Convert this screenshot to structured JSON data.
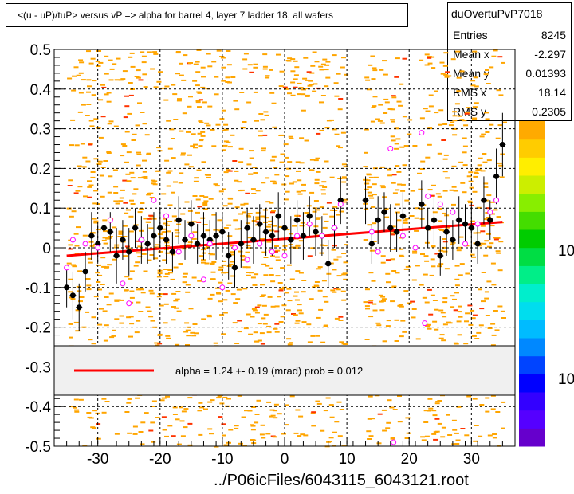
{
  "title": "<(u - uP)/tuP> versus   vP => alpha for barrel 4, layer 7 ladder 18, all wafers",
  "stats": {
    "name": "duOvertuPvP7018",
    "rows": [
      {
        "label": "Entries",
        "value": "8245"
      },
      {
        "label": "Mean x",
        "value": "-2.297"
      },
      {
        "label": "Mean y",
        "value": "0.01393"
      },
      {
        "label": "RMS x",
        "value": "18.14"
      },
      {
        "label": "RMS y",
        "value": "0.2305"
      }
    ]
  },
  "legend": {
    "text": "alpha =    1.24 +-  0.19 (mrad) prob = 0.012"
  },
  "footer": "../P06icFiles/6043115_6043121.root",
  "palette_labels": [
    "10",
    "10"
  ],
  "colors": {
    "fit": "#ff0000",
    "points": "#000000",
    "open_points": "#ff00ff",
    "scatter": "#ffa500"
  },
  "chart_data": {
    "type": "scatter",
    "title": "<(u - uP)/tuP> versus   vP => alpha for barrel 4, layer 7 ladder 18, all wafers",
    "xlim": [
      -37,
      37
    ],
    "ylim": [
      -0.5,
      0.5
    ],
    "x_ticks": [
      -30,
      -20,
      -10,
      0,
      10,
      20,
      30
    ],
    "y_ticks": [
      -0.5,
      -0.4,
      -0.3,
      -0.2,
      -0.1,
      0,
      0.1,
      0.2,
      0.3,
      0.4,
      0.5
    ],
    "x_tick_labels": [
      "-30",
      "-20",
      "-10",
      "0",
      "10",
      "20",
      "30"
    ],
    "y_tick_labels": [
      "-0.5",
      "-0.4",
      "-0.3",
      "-0.2",
      "-0.1",
      "0",
      "0.1",
      "0.2",
      "0.3",
      "0.4",
      "0.5"
    ],
    "grid": true,
    "fit_line": {
      "x": [
        -35,
        35
      ],
      "y": [
        -0.02,
        0.065
      ]
    },
    "profile_points": [
      [
        -35,
        -0.1,
        0.05
      ],
      [
        -34,
        -0.12,
        0.06
      ],
      [
        -33,
        -0.15,
        0.06
      ],
      [
        -32,
        -0.06,
        0.05
      ],
      [
        -31,
        0.03,
        0.06
      ],
      [
        -30,
        0.01,
        0.05
      ],
      [
        -29,
        0.05,
        0.06
      ],
      [
        -28,
        0.04,
        0.05
      ],
      [
        -27,
        -0.02,
        0.07
      ],
      [
        -26,
        0.02,
        0.05
      ],
      [
        -25,
        -0.01,
        0.06
      ],
      [
        -24,
        0.05,
        0.05
      ],
      [
        -23,
        0.02,
        0.06
      ],
      [
        -22,
        0.01,
        0.05
      ],
      [
        -21,
        0.03,
        0.06
      ],
      [
        -20,
        0.05,
        0.05
      ],
      [
        -19,
        0.02,
        0.06
      ],
      [
        -18,
        -0.01,
        0.05
      ],
      [
        -17,
        0.07,
        0.06
      ],
      [
        -16,
        0.02,
        0.05
      ],
      [
        -15,
        0.06,
        0.06
      ],
      [
        -14,
        0.01,
        0.05
      ],
      [
        -13,
        0.03,
        0.06
      ],
      [
        -12,
        0.02,
        0.05
      ],
      [
        -11,
        0.03,
        0.06
      ],
      [
        -10,
        0.04,
        0.05
      ],
      [
        -9,
        -0.02,
        0.06
      ],
      [
        -8,
        -0.05,
        0.05
      ],
      [
        -7,
        0.01,
        0.06
      ],
      [
        -6,
        0.05,
        0.05
      ],
      [
        -5,
        0.02,
        0.06
      ],
      [
        -4,
        0.06,
        0.05
      ],
      [
        -3,
        0.04,
        0.06
      ],
      [
        -2,
        0.03,
        0.05
      ],
      [
        -1,
        0.08,
        0.06
      ],
      [
        0,
        0.05,
        0.05
      ],
      [
        1,
        0.02,
        0.06
      ],
      [
        2,
        0.07,
        0.05
      ],
      [
        3,
        0.03,
        0.06
      ],
      [
        4,
        0.08,
        0.05
      ],
      [
        5,
        0.04,
        0.06
      ],
      [
        6,
        0.03,
        0.05
      ],
      [
        7,
        -0.04,
        0.06
      ],
      [
        8,
        0.05,
        0.05
      ],
      [
        9,
        0.12,
        0.06
      ],
      [
        13,
        0.12,
        0.06
      ],
      [
        14,
        0.01,
        0.05
      ],
      [
        15,
        0.07,
        0.06
      ],
      [
        16,
        0.09,
        0.05
      ],
      [
        17,
        0.05,
        0.06
      ],
      [
        18,
        0.04,
        0.05
      ],
      [
        19,
        0.08,
        0.06
      ],
      [
        22,
        0.11,
        0.06
      ],
      [
        23,
        0.05,
        0.05
      ],
      [
        24,
        0.07,
        0.06
      ],
      [
        25,
        -0.02,
        0.05
      ],
      [
        26,
        0.04,
        0.06
      ],
      [
        27,
        0.02,
        0.05
      ],
      [
        28,
        0.07,
        0.06
      ],
      [
        29,
        0.06,
        0.05
      ],
      [
        30,
        0.05,
        0.06
      ],
      [
        31,
        0.01,
        0.05
      ],
      [
        32,
        0.12,
        0.06
      ],
      [
        33,
        0.07,
        0.05
      ],
      [
        34,
        0.18,
        0.07
      ],
      [
        35,
        0.26,
        0.08
      ]
    ],
    "open_points": [
      [
        -35,
        -0.05
      ],
      [
        -34,
        0.02
      ],
      [
        -32,
        0.01
      ],
      [
        -30,
        0.0
      ],
      [
        -28,
        0.07
      ],
      [
        -26,
        -0.09
      ],
      [
        -25,
        -0.14
      ],
      [
        -23,
        0.02
      ],
      [
        -21,
        0.12
      ],
      [
        -19,
        0.08
      ],
      [
        -17,
        -0.01
      ],
      [
        -15,
        0.03
      ],
      [
        -13,
        -0.08
      ],
      [
        -12,
        0.01
      ],
      [
        -10,
        -0.1
      ],
      [
        -8,
        0.0
      ],
      [
        -6,
        -0.03
      ],
      [
        -4,
        0.01
      ],
      [
        -2,
        -0.01
      ],
      [
        0,
        -0.02
      ],
      [
        2,
        0.03
      ],
      [
        4,
        0.06
      ],
      [
        6,
        0.03
      ],
      [
        8,
        0.05
      ],
      [
        9,
        0.11
      ],
      [
        14,
        0.04
      ],
      [
        15,
        -0.01
      ],
      [
        17,
        0.25
      ],
      [
        19,
        0.03
      ],
      [
        21,
        0.0
      ],
      [
        22,
        0.29
      ],
      [
        22.5,
        -0.19
      ],
      [
        23,
        0.13
      ],
      [
        25,
        0.11
      ],
      [
        27,
        0.09
      ],
      [
        29,
        0.01
      ],
      [
        31,
        0.06
      ],
      [
        33,
        0.09
      ],
      [
        34,
        0.12
      ],
      [
        17.5,
        -0.49
      ]
    ],
    "series": [
      {
        "name": "alpha fit",
        "values": [
          -0.02,
          0.065
        ]
      }
    ]
  }
}
